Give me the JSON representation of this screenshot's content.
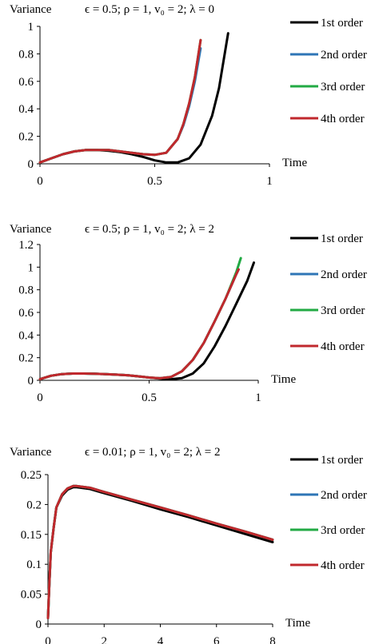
{
  "chart_data": [
    {
      "type": "line",
      "title": "ϵ = 0.5; ρ = 1, v₀ = 2; λ = 0",
      "ylabel": "Variance",
      "xlabel": "Time",
      "xlim": [
        0,
        1
      ],
      "ylim": [
        0,
        1
      ],
      "x_ticks": [
        "0",
        "0.5",
        "1"
      ],
      "y_ticks": [
        "0",
        "0.2",
        "0.4",
        "0.6",
        "0.8",
        "1"
      ],
      "legend_position": "right",
      "series": [
        {
          "name": "1st order",
          "color": "#000000",
          "x": [
            0,
            0.05,
            0.1,
            0.15,
            0.2,
            0.25,
            0.3,
            0.35,
            0.4,
            0.45,
            0.5,
            0.55,
            0.6,
            0.65,
            0.7,
            0.75,
            0.78,
            0.8,
            0.82
          ],
          "y": [
            0.01,
            0.04,
            0.07,
            0.09,
            0.1,
            0.1,
            0.095,
            0.085,
            0.07,
            0.05,
            0.025,
            0.01,
            0.01,
            0.04,
            0.14,
            0.35,
            0.55,
            0.75,
            0.95
          ]
        },
        {
          "name": "2nd order",
          "color": "#2e75b6",
          "x": [
            0,
            0.05,
            0.1,
            0.15,
            0.2,
            0.25,
            0.3,
            0.35,
            0.4,
            0.45,
            0.5,
            0.55,
            0.6,
            0.625,
            0.65,
            0.675,
            0.7
          ],
          "y": [
            0.01,
            0.04,
            0.07,
            0.09,
            0.1,
            0.1,
            0.1,
            0.09,
            0.08,
            0.07,
            0.065,
            0.08,
            0.18,
            0.28,
            0.42,
            0.6,
            0.84
          ]
        },
        {
          "name": "3rd order",
          "color": "#22aa44",
          "x": [
            0,
            0.05,
            0.1,
            0.15,
            0.2,
            0.25,
            0.3,
            0.35,
            0.4,
            0.45,
            0.5,
            0.55,
            0.6,
            0.625,
            0.65,
            0.675,
            0.7
          ],
          "y": [
            0.01,
            0.04,
            0.07,
            0.09,
            0.1,
            0.1,
            0.1,
            0.09,
            0.08,
            0.07,
            0.065,
            0.08,
            0.18,
            0.29,
            0.44,
            0.63,
            0.9
          ]
        },
        {
          "name": "4th order",
          "color": "#c0282d",
          "x": [
            0,
            0.05,
            0.1,
            0.15,
            0.2,
            0.25,
            0.3,
            0.35,
            0.4,
            0.45,
            0.5,
            0.55,
            0.6,
            0.625,
            0.65,
            0.675,
            0.7
          ],
          "y": [
            0.01,
            0.04,
            0.07,
            0.09,
            0.1,
            0.1,
            0.1,
            0.09,
            0.08,
            0.07,
            0.065,
            0.08,
            0.18,
            0.29,
            0.44,
            0.63,
            0.9
          ]
        }
      ]
    },
    {
      "type": "line",
      "title": "ϵ = 0.5; ρ = 1, v₀ = 2; λ = 2",
      "ylabel": "Variance",
      "xlabel": "Time",
      "xlim": [
        0,
        1
      ],
      "ylim": [
        0,
        1.2
      ],
      "x_ticks": [
        "0",
        "0.5",
        "1"
      ],
      "y_ticks": [
        "0",
        "0.2",
        "0.4",
        "0.6",
        "0.8",
        "1",
        "1.2"
      ],
      "legend_position": "right",
      "series": [
        {
          "name": "1st order",
          "color": "#000000",
          "x": [
            0,
            0.05,
            0.1,
            0.15,
            0.2,
            0.25,
            0.3,
            0.35,
            0.4,
            0.45,
            0.5,
            0.55,
            0.6,
            0.65,
            0.7,
            0.75,
            0.8,
            0.85,
            0.9,
            0.95,
            0.98
          ],
          "y": [
            0.01,
            0.04,
            0.055,
            0.06,
            0.06,
            0.058,
            0.055,
            0.05,
            0.045,
            0.035,
            0.025,
            0.015,
            0.01,
            0.02,
            0.06,
            0.15,
            0.3,
            0.48,
            0.68,
            0.88,
            1.04
          ]
        },
        {
          "name": "2nd order",
          "color": "#2e75b6",
          "x": [
            0,
            0.05,
            0.1,
            0.15,
            0.2,
            0.25,
            0.3,
            0.35,
            0.4,
            0.45,
            0.5,
            0.55,
            0.6,
            0.65,
            0.7,
            0.75,
            0.8,
            0.85,
            0.9,
            0.91
          ],
          "y": [
            0.01,
            0.04,
            0.055,
            0.06,
            0.06,
            0.058,
            0.055,
            0.05,
            0.045,
            0.035,
            0.025,
            0.018,
            0.03,
            0.08,
            0.18,
            0.33,
            0.52,
            0.72,
            0.94,
            0.98
          ]
        },
        {
          "name": "3rd order",
          "color": "#22aa44",
          "x": [
            0,
            0.05,
            0.1,
            0.15,
            0.2,
            0.25,
            0.3,
            0.35,
            0.4,
            0.45,
            0.5,
            0.55,
            0.6,
            0.65,
            0.7,
            0.75,
            0.8,
            0.85,
            0.9,
            0.92
          ],
          "y": [
            0.01,
            0.04,
            0.055,
            0.06,
            0.06,
            0.058,
            0.055,
            0.05,
            0.045,
            0.035,
            0.025,
            0.018,
            0.03,
            0.08,
            0.18,
            0.33,
            0.52,
            0.72,
            0.96,
            1.08
          ]
        },
        {
          "name": "4th order",
          "color": "#c0282d",
          "x": [
            0,
            0.05,
            0.1,
            0.15,
            0.2,
            0.25,
            0.3,
            0.35,
            0.4,
            0.45,
            0.5,
            0.55,
            0.6,
            0.65,
            0.7,
            0.75,
            0.8,
            0.85,
            0.9,
            0.91
          ],
          "y": [
            0.01,
            0.04,
            0.055,
            0.06,
            0.06,
            0.058,
            0.055,
            0.05,
            0.045,
            0.035,
            0.025,
            0.018,
            0.03,
            0.08,
            0.18,
            0.33,
            0.52,
            0.72,
            0.94,
            0.98
          ]
        }
      ]
    },
    {
      "type": "line",
      "title": "ϵ = 0.01; ρ = 1, v₀ = 2; λ = 2",
      "ylabel": "Variance",
      "xlabel": "Time",
      "xlim": [
        0,
        8
      ],
      "ylim": [
        0,
        0.25
      ],
      "x_ticks": [
        "0",
        "2",
        "4",
        "6",
        "8"
      ],
      "y_ticks": [
        "0",
        "0.05",
        "0.1",
        "0.15",
        "0.2",
        "0.25"
      ],
      "legend_position": "right",
      "series": [
        {
          "name": "1st order",
          "color": "#000000",
          "x": [
            0,
            0.05,
            0.1,
            0.2,
            0.3,
            0.5,
            0.7,
            0.9,
            1,
            1.5,
            2,
            3,
            4,
            5,
            6,
            7,
            8
          ],
          "y": [
            0.01,
            0.07,
            0.12,
            0.16,
            0.195,
            0.215,
            0.225,
            0.229,
            0.229,
            0.226,
            0.219,
            0.206,
            0.192,
            0.179,
            0.165,
            0.151,
            0.137
          ]
        },
        {
          "name": "2nd order",
          "color": "#2e75b6",
          "x": [
            0,
            0.05,
            0.1,
            0.2,
            0.3,
            0.5,
            0.7,
            0.9,
            1,
            1.5,
            2,
            3,
            4,
            5,
            6,
            7,
            8
          ],
          "y": [
            0.01,
            0.07,
            0.12,
            0.16,
            0.195,
            0.217,
            0.227,
            0.231,
            0.231,
            0.228,
            0.221,
            0.208,
            0.195,
            0.182,
            0.168,
            0.155,
            0.141
          ]
        },
        {
          "name": "3rd order",
          "color": "#22aa44",
          "x": [
            0,
            0.05,
            0.1,
            0.2,
            0.3,
            0.5,
            0.7,
            0.9,
            1,
            1.5,
            2,
            3,
            4,
            5,
            6,
            7,
            8
          ],
          "y": [
            0.01,
            0.07,
            0.12,
            0.16,
            0.195,
            0.217,
            0.227,
            0.231,
            0.231,
            0.228,
            0.221,
            0.208,
            0.195,
            0.182,
            0.168,
            0.155,
            0.141
          ]
        },
        {
          "name": "4th order",
          "color": "#c0282d",
          "x": [
            0,
            0.05,
            0.1,
            0.2,
            0.3,
            0.5,
            0.7,
            0.9,
            1,
            1.5,
            2,
            3,
            4,
            5,
            6,
            7,
            8
          ],
          "y": [
            0.01,
            0.07,
            0.12,
            0.16,
            0.195,
            0.217,
            0.227,
            0.231,
            0.231,
            0.228,
            0.221,
            0.208,
            0.195,
            0.182,
            0.168,
            0.155,
            0.141
          ]
        }
      ]
    }
  ]
}
